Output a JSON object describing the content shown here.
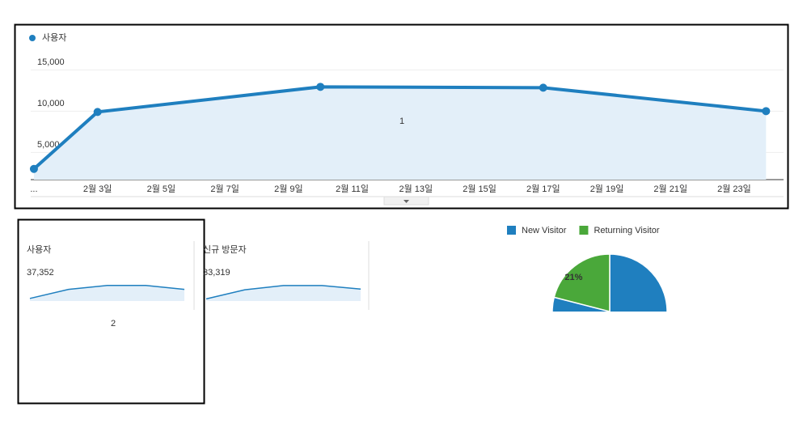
{
  "annotations": [
    "1",
    "2"
  ],
  "chart_data": [
    {
      "type": "line",
      "series": [
        {
          "name": "사용자",
          "color": "#1f7fbf",
          "values": [
            3000,
            9900,
            12940,
            12840,
            10000
          ]
        }
      ],
      "x": [
        1,
        3,
        10,
        17,
        24
      ],
      "xlim": [
        0.9,
        24.55
      ],
      "xticks": [
        {
          "value": 1,
          "label": "..."
        },
        {
          "value": 3,
          "label": "2월 3일"
        },
        {
          "value": 5,
          "label": "2월 5일"
        },
        {
          "value": 7,
          "label": "2월 7일"
        },
        {
          "value": 9,
          "label": "2월 9일"
        },
        {
          "value": 11,
          "label": "2월 11일"
        },
        {
          "value": 13,
          "label": "2월 13일"
        },
        {
          "value": 15,
          "label": "2월 15일"
        },
        {
          "value": 17,
          "label": "2월 17일"
        },
        {
          "value": 19,
          "label": "2월 19일"
        },
        {
          "value": 21,
          "label": "2월 21일"
        },
        {
          "value": 23,
          "label": "2월 23일"
        }
      ],
      "ylim": [
        1700,
        16600
      ],
      "yticks": [
        {
          "value": 5000,
          "label": "5,000"
        },
        {
          "value": 10000,
          "label": "10,000"
        },
        {
          "value": 15000,
          "label": "15,000"
        }
      ],
      "grid": true
    },
    {
      "type": "pie",
      "categories": [
        "New Visitor",
        "Returning Visitor"
      ],
      "values": [
        79,
        21
      ],
      "value_labels": [
        null,
        "21%"
      ],
      "colors": [
        "#1f7fbf",
        "#4aa83a"
      ]
    }
  ],
  "scorecards": [
    {
      "label": "사용자",
      "value": "37,352",
      "sparkline": [
        3000,
        10000,
        13000,
        13000,
        10000
      ],
      "ylim": [
        1000,
        13500
      ]
    },
    {
      "label": "신규 방문자",
      "value": "33,319",
      "sparkline": [
        2500,
        9000,
        12000,
        12000,
        9500
      ],
      "ylim": [
        1000,
        12500
      ]
    }
  ]
}
